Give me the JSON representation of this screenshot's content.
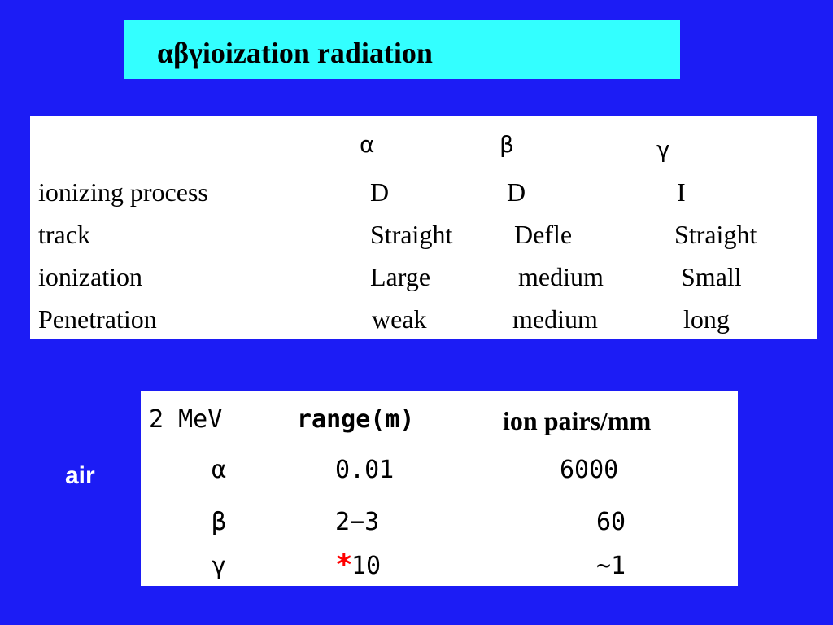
{
  "title": "αβγioization radiation",
  "table1": {
    "header": [
      "α",
      "β",
      "γ"
    ],
    "rows": [
      [
        "ionizing process",
        "D",
        "D",
        "I"
      ],
      [
        "track",
        "Straight",
        "Defle",
        "Straight"
      ],
      [
        "ionization",
        "Large",
        "medium",
        "Small"
      ],
      [
        "Penetration",
        "weak",
        "medium",
        "long"
      ]
    ]
  },
  "side_label": "air",
  "table2": {
    "header": [
      "2 MeV",
      "range(m)",
      "ion pairs/mm"
    ],
    "rows": [
      [
        "α",
        "0.01",
        "6000"
      ],
      [
        "β",
        "2−3",
        "60"
      ],
      [
        "γ",
        {
          "mark": "*",
          "value": "10"
        },
        "~1"
      ]
    ]
  }
}
